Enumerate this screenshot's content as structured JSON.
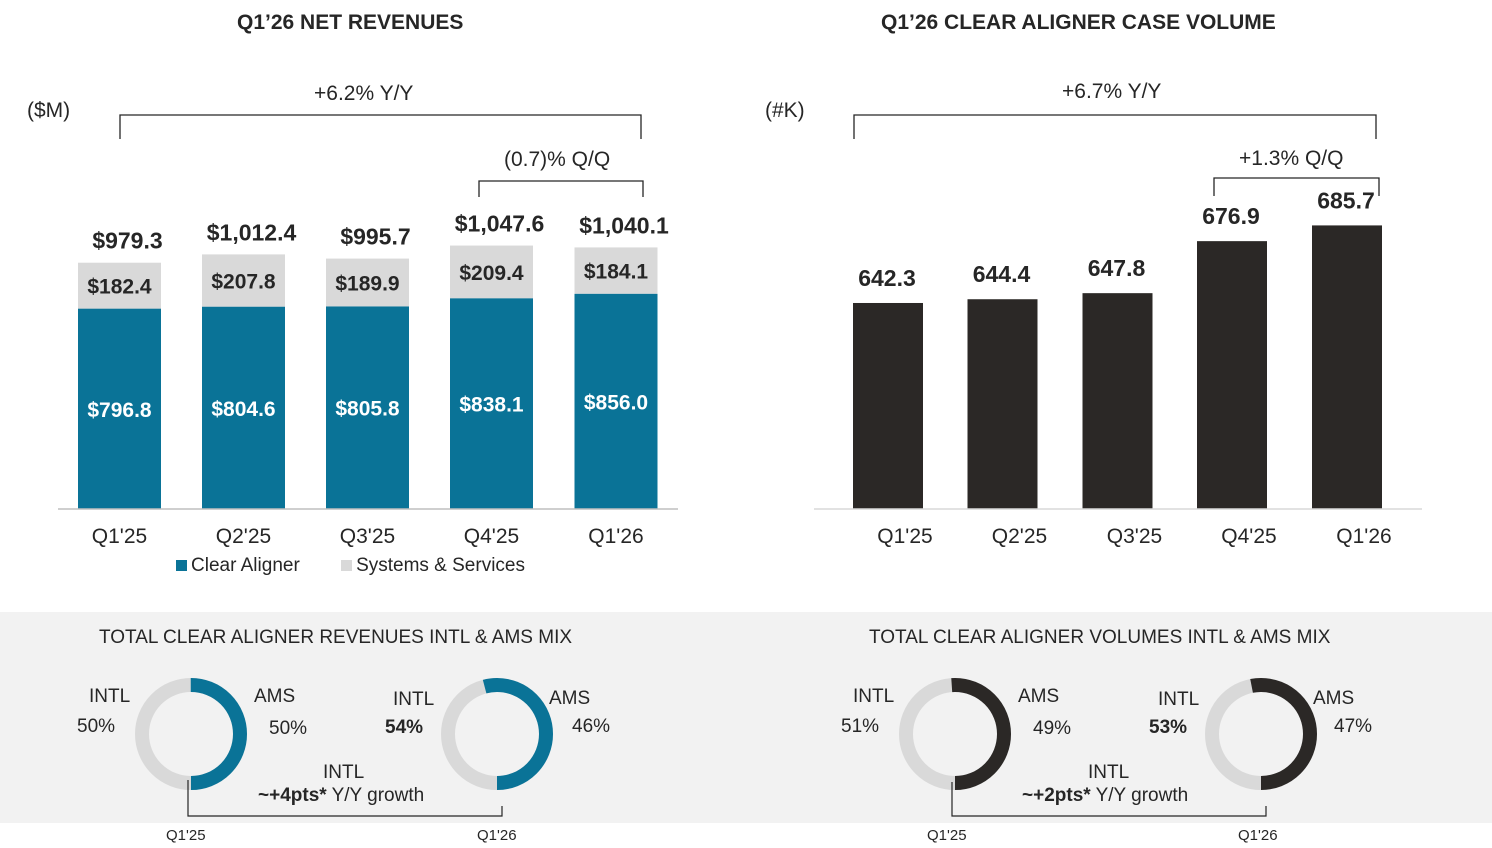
{
  "colors": {
    "clear_aligner": "#0a7397",
    "systems_services": "#d9d9d9",
    "case_volume": "#2b2826",
    "donut_rest": "#d9d9d9"
  },
  "revenue_unit": "($M)",
  "volume_unit": "(#K)",
  "revenue_yy": "+6.2% Y/Y",
  "revenue_qq": "(0.7)% Q/Q",
  "volume_yy": "+6.7% Y/Y",
  "volume_qq": "+1.3% Q/Q",
  "legend": {
    "clear_aligner": "Clear Aligner",
    "systems_services": "Systems & Services"
  },
  "chart_data": [
    {
      "type": "bar",
      "stacked": true,
      "title": "Q1’26 NET REVENUES",
      "ylabel": "($M)",
      "categories": [
        "Q1'25",
        "Q2'25",
        "Q3'25",
        "Q4'25",
        "Q1'26"
      ],
      "totals": [
        "$979.3",
        "$1,012.4",
        "$995.7",
        "$1,047.6",
        "$1,040.1"
      ],
      "series": [
        {
          "name": "Clear Aligner",
          "values": [
            796.8,
            804.6,
            805.8,
            838.1,
            856.0
          ],
          "labels": [
            "$796.8",
            "$804.6",
            "$805.8",
            "$838.1",
            "$856.0"
          ]
        },
        {
          "name": "Systems & Services",
          "values": [
            182.4,
            207.8,
            189.9,
            209.4,
            184.1
          ],
          "labels": [
            "$182.4",
            "$207.8",
            "$189.9",
            "$209.4",
            "$184.1"
          ]
        }
      ]
    },
    {
      "type": "bar",
      "title": "Q1’26 CLEAR ALIGNER CASE VOLUME",
      "ylabel": "(#K)",
      "categories": [
        "Q1'25",
        "Q2'25",
        "Q3'25",
        "Q4'25",
        "Q1'26"
      ],
      "values": [
        642.3,
        644.4,
        647.8,
        676.9,
        685.7
      ],
      "labels": [
        "642.3",
        "644.4",
        "647.8",
        "676.9",
        "685.7"
      ]
    },
    {
      "type": "pie",
      "title": "TOTAL CLEAR ALIGNER REVENUES INTL & AMS MIX",
      "growth_line1": "INTL",
      "growth_bold": "~+4pts*",
      "growth_rest": " Y/Y growth",
      "donuts": [
        {
          "period": "Q1'25",
          "intl_label": "INTL",
          "intl": "50%",
          "intl_value": 50,
          "ams_label": "AMS",
          "ams": "50%",
          "ams_value": 50
        },
        {
          "period": "Q1'26",
          "intl_label": "INTL",
          "intl": "54%",
          "intl_value": 54,
          "ams_label": "AMS",
          "ams": "46%",
          "ams_value": 46
        }
      ]
    },
    {
      "type": "pie",
      "title": "TOTAL CLEAR ALIGNER VOLUMES INTL & AMS MIX",
      "growth_line1": "INTL",
      "growth_bold": "~+2pts*",
      "growth_rest": " Y/Y growth",
      "donuts": [
        {
          "period": "Q1'25",
          "intl_label": "INTL",
          "intl": "51%",
          "intl_value": 51,
          "ams_label": "AMS",
          "ams": "49%",
          "ams_value": 49
        },
        {
          "period": "Q1'26",
          "intl_label": "INTL",
          "intl": "53%",
          "intl_value": 53,
          "ams_label": "AMS",
          "ams": "47%",
          "ams_value": 47
        }
      ]
    }
  ]
}
